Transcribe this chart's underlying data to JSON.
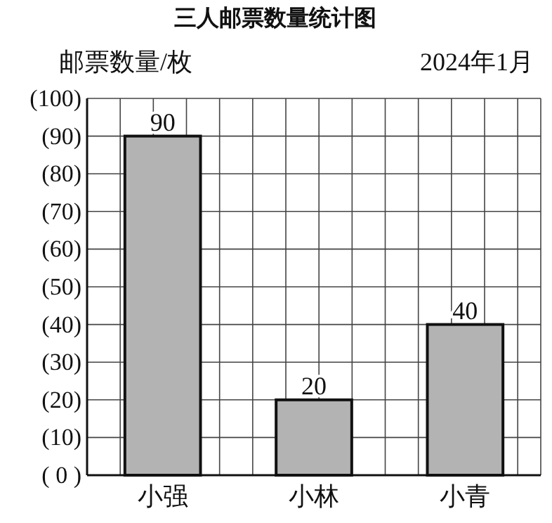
{
  "chart_data": {
    "type": "bar",
    "title": "三人邮票数量统计图",
    "ylabel": "邮票数量/枚",
    "annotations": [
      "2024年1月"
    ],
    "categories": [
      "小强",
      "小林",
      "小青"
    ],
    "values": [
      90,
      20,
      40
    ],
    "color": "#b3b3b3",
    "data_labels": true,
    "grid": true,
    "ylim": [
      0,
      100
    ],
    "yticks": [
      {
        "value": 0,
        "label": "( 0 )"
      },
      {
        "value": 10,
        "label": "(10)"
      },
      {
        "value": 20,
        "label": "(20)"
      },
      {
        "value": 30,
        "label": "(30)"
      },
      {
        "value": 40,
        "label": "(40)"
      },
      {
        "value": 50,
        "label": "(50)"
      },
      {
        "value": 60,
        "label": "(60)"
      },
      {
        "value": 70,
        "label": "(70)"
      },
      {
        "value": 80,
        "label": "(80)"
      },
      {
        "value": 90,
        "label": "(90)"
      },
      {
        "value": 100,
        "label": "(100)"
      }
    ]
  }
}
